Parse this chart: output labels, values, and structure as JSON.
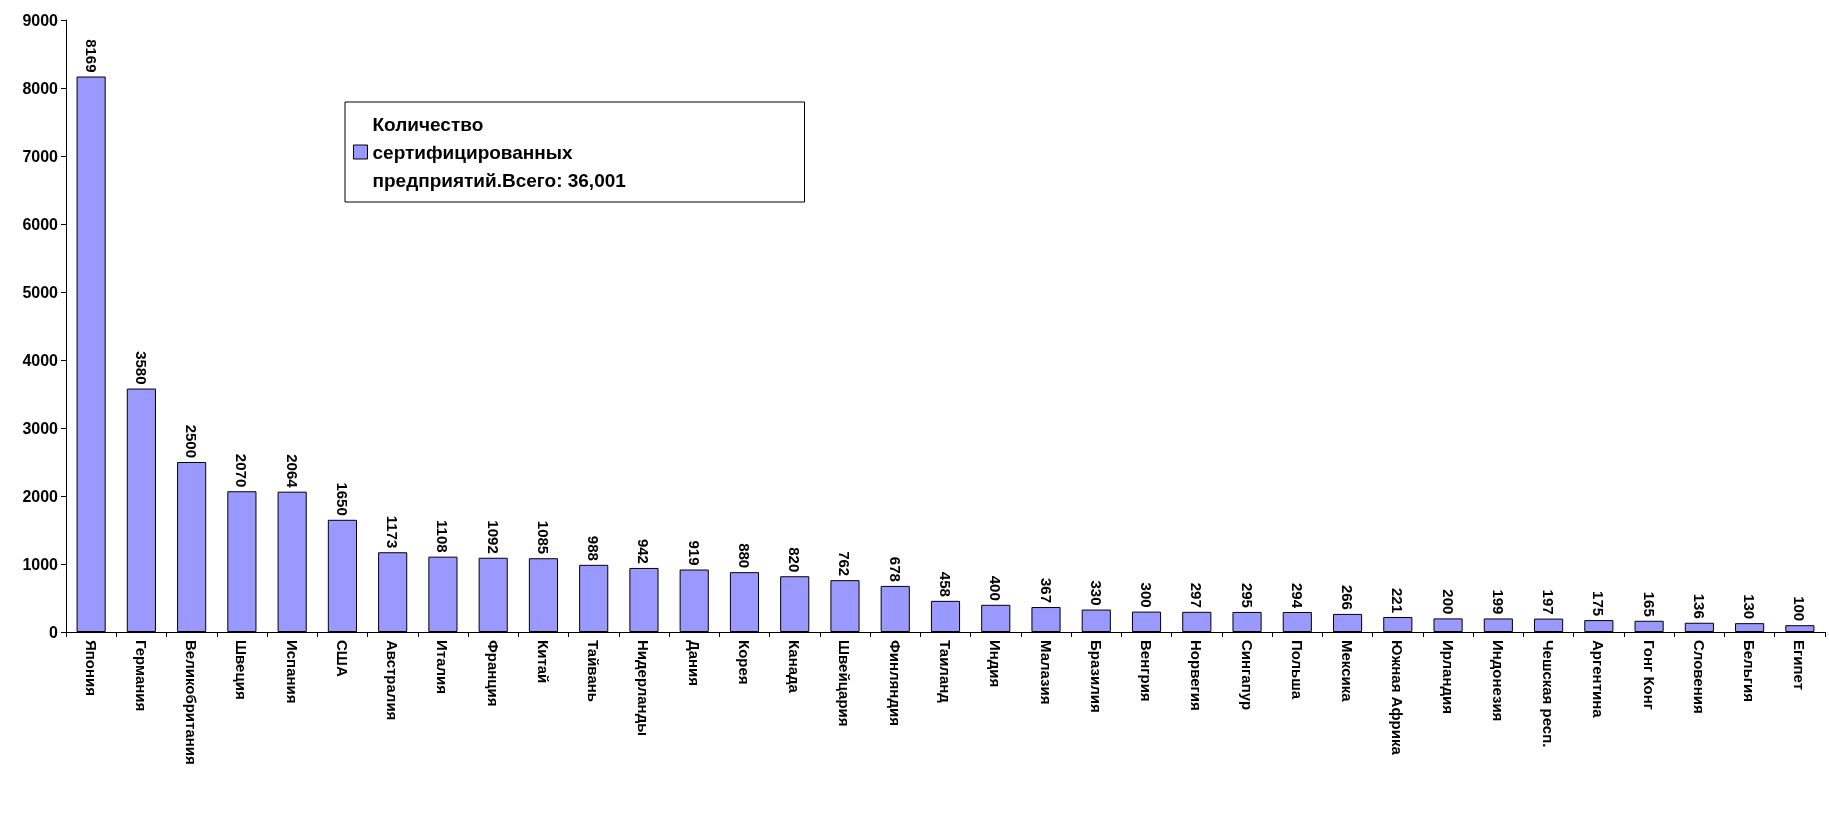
{
  "chart_data": {
    "type": "bar",
    "categories": [
      "Япония",
      "Германия",
      "Великобритания",
      "Швеция",
      "Испания",
      "США",
      "Австралия",
      "Италия",
      "Франция",
      "Китай",
      "Тайвань",
      "Нидерланды",
      "Дания",
      "Корея",
      "Канада",
      "Швейцария",
      "Финляндия",
      "Таиланд",
      "Индия",
      "Малазия",
      "Бразилия",
      "Венгрия",
      "Норвегия",
      "Сингапур",
      "Польша",
      "Мексика",
      "Южная Африка",
      "Ирландия",
      "Индонезия",
      "Чешская респ.",
      "Аргентина",
      "Гонг Конг",
      "Словения",
      "Бельгия",
      "Египет"
    ],
    "series": [
      {
        "name": "Количество сертифицированных предприятий.Всего: 36,001",
        "color": "#9999ff",
        "values": [
          8169,
          3580,
          2500,
          2070,
          2064,
          1650,
          1173,
          1108,
          1092,
          1085,
          988,
          942,
          919,
          880,
          820,
          762,
          678,
          458,
          400,
          367,
          330,
          300,
          297,
          295,
          294,
          266,
          221,
          200,
          199,
          197,
          175,
          165,
          136,
          130,
          100
        ]
      }
    ],
    "ylim": [
      0,
      9000
    ],
    "yticks": [
      0,
      1000,
      2000,
      3000,
      4000,
      5000,
      6000,
      7000,
      8000,
      9000
    ],
    "data_labels": true,
    "grid": false,
    "legend": "top left"
  }
}
